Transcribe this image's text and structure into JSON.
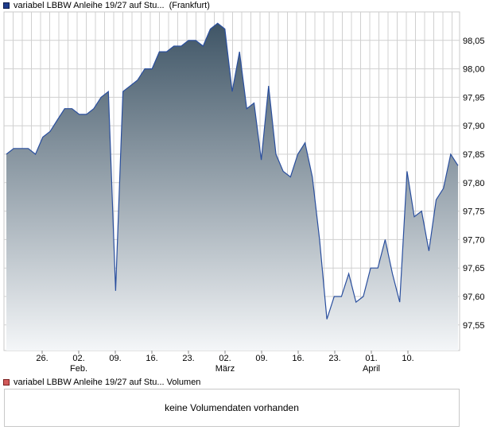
{
  "legend_price": {
    "name": "variabel LBBW Anleihe 19/27 auf Stu...",
    "exchange": "(Frankfurt)",
    "color": "#1f3d8c"
  },
  "legend_volume": {
    "name": "variabel LBBW Anleihe 19/27 auf Stu... Volumen",
    "color": "#d25a5a"
  },
  "volume_panel": {
    "message": "keine Volumendaten vorhanden"
  },
  "chart_data": {
    "type": "area",
    "title": "",
    "xlabel": "",
    "ylabel": "",
    "ylim": [
      97.5,
      98.1
    ],
    "y_ticks": [
      "97,55",
      "97,60",
      "97,65",
      "97,70",
      "97,75",
      "97,80",
      "97,85",
      "97,90",
      "97,95",
      "98,00",
      "98,05"
    ],
    "x_ticks": [
      {
        "day": "26.",
        "month": ""
      },
      {
        "day": "02.",
        "month": "Feb."
      },
      {
        "day": "09.",
        "month": ""
      },
      {
        "day": "16.",
        "month": ""
      },
      {
        "day": "23.",
        "month": ""
      },
      {
        "day": "02.",
        "month": "März"
      },
      {
        "day": "09.",
        "month": ""
      },
      {
        "day": "16.",
        "month": ""
      },
      {
        "day": "23.",
        "month": ""
      },
      {
        "day": "01.",
        "month": "April"
      },
      {
        "day": "10.",
        "month": ""
      }
    ],
    "grid": true,
    "legend": "top-left",
    "colors": {
      "line": "#2a4f9e",
      "fill_top": "#3f5566",
      "fill_bottom": "#f4f6f8",
      "grid": "#d0d0d0"
    },
    "series": [
      {
        "values": [
          97.85,
          97.86,
          97.86,
          97.86,
          97.85,
          97.88,
          97.89,
          97.91,
          97.93,
          97.93,
          97.92,
          97.92,
          97.93,
          97.95,
          97.96,
          97.61,
          97.96,
          97.97,
          97.98,
          98.0,
          98.0,
          98.03,
          98.03,
          98.04,
          98.04,
          98.05,
          98.05,
          98.04,
          98.07,
          98.08,
          98.07,
          97.96,
          98.03,
          97.93,
          97.94,
          97.84,
          97.97,
          97.85,
          97.82,
          97.81,
          97.85,
          97.87,
          97.81,
          97.7,
          97.56,
          97.6,
          97.6,
          97.64,
          97.59,
          97.6,
          97.65,
          97.65,
          97.7,
          97.64,
          97.59,
          97.82,
          97.74,
          97.75,
          97.68,
          97.77,
          97.79,
          97.85,
          97.83
        ]
      }
    ]
  }
}
